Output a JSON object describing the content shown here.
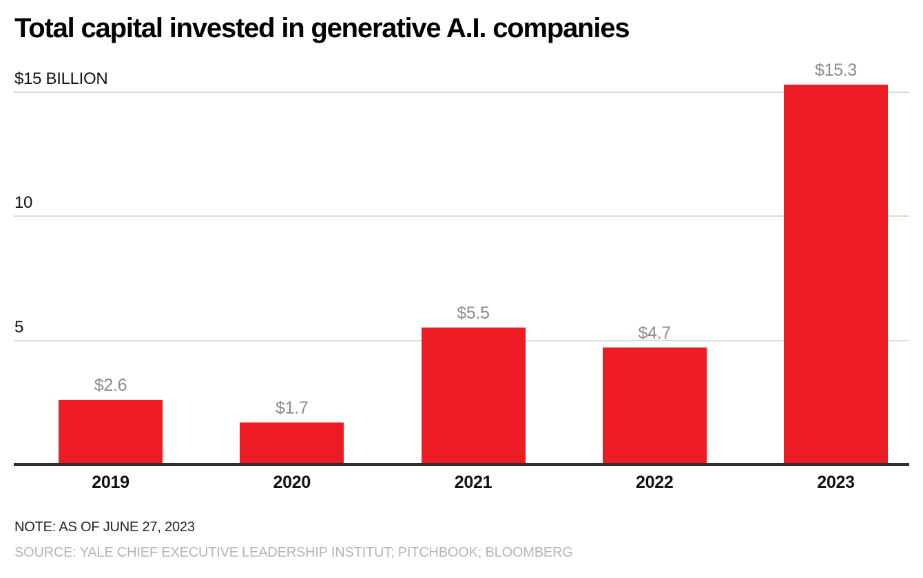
{
  "chart_data": {
    "type": "bar",
    "title": "Total capital invested in generative A.I. companies",
    "categories": [
      "2019",
      "2020",
      "2021",
      "2022",
      "2023"
    ],
    "values": [
      2.6,
      1.7,
      5.5,
      4.7,
      15.3
    ],
    "bar_labels": [
      "$2.6",
      "$1.7",
      "$5.5",
      "$4.7",
      "$15.3"
    ],
    "unit": "$ billions",
    "xlabel": "",
    "ylabel": "",
    "ylim": [
      0,
      15.3
    ],
    "yticks": [
      {
        "value": 15,
        "label": "$15 BILLION"
      },
      {
        "value": 10,
        "label": "10"
      },
      {
        "value": 5,
        "label": "5"
      }
    ],
    "grid": "horizontal",
    "legend": "none",
    "note": "NOTE: AS OF JUNE 27, 2023",
    "source": "SOURCE: YALE CHIEF EXECUTIVE LEADERSHIP INSTITUT; PITCHBOOK; BLOOMBERG",
    "colors": {
      "bar": "#ed1c24",
      "value_label": "#8c8c8c",
      "gridline": "#d9d9d9",
      "baseline": "#2e2e2e",
      "axis_text": "#111111",
      "note_text": "#222222",
      "source_text": "#b5b5b5"
    }
  }
}
